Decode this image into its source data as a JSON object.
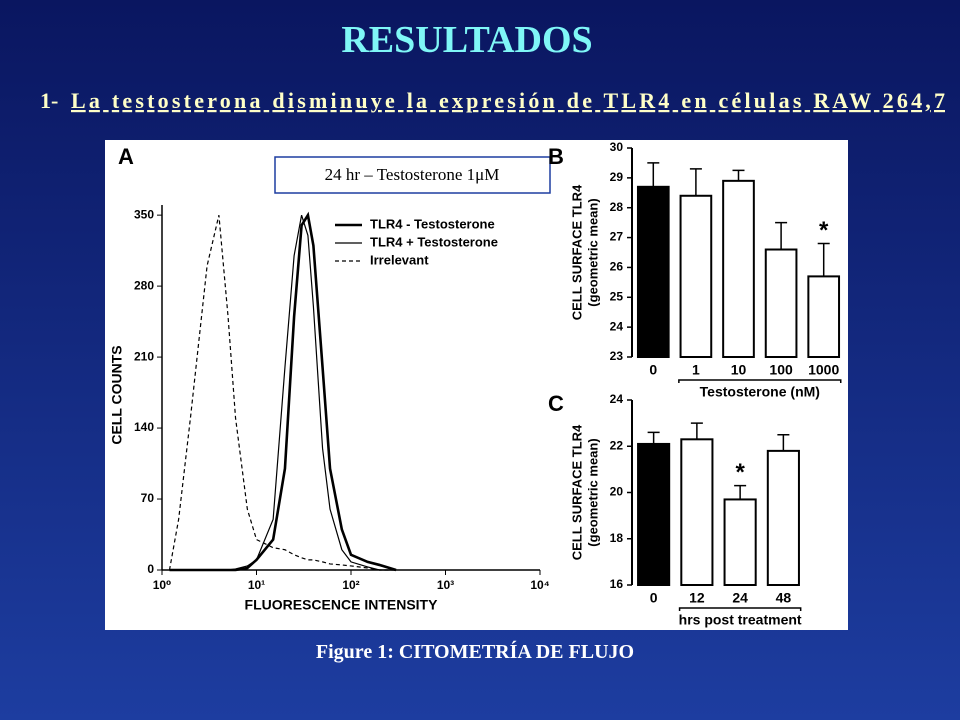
{
  "slide": {
    "title": "RESULTADOS",
    "subtitle_number": "1-",
    "subtitle": "La testosterona disminuye la expresión de TLR4 en células RAW 264,7",
    "inset_label": "24 hr – Testosterone 1μM",
    "caption": "Figure 1: CITOMETRÍA DE FLUJO"
  },
  "chart_data": [
    {
      "type": "line",
      "panel": "A",
      "ylabel": "CELL COUNTS",
      "xlabel": "FLUORESCENCE INTENSITY",
      "xscale": "log",
      "x": [
        1.2,
        1.5,
        2,
        3,
        4,
        5,
        6,
        8,
        10,
        15,
        20,
        25,
        30,
        35,
        40,
        50,
        60,
        80,
        100,
        150,
        200,
        300
      ],
      "series": [
        {
          "name": "TLR4 - Testosterone",
          "color": "#000000",
          "style": "solid",
          "line_width": 2.6,
          "values": [
            0,
            0,
            0,
            0,
            0,
            0,
            0,
            2,
            10,
            30,
            100,
            250,
            340,
            350,
            320,
            200,
            100,
            40,
            15,
            8,
            5,
            0
          ]
        },
        {
          "name": "TLR4 + Testosterone",
          "color": "#000000",
          "style": "solid",
          "line_width": 1.2,
          "values": [
            0,
            0,
            0,
            0,
            0,
            0,
            1,
            4,
            10,
            50,
            200,
            310,
            350,
            330,
            260,
            120,
            60,
            20,
            8,
            3,
            0,
            0
          ]
        },
        {
          "name": "Irrelevant",
          "color": "#000000",
          "style": "dashed",
          "line_width": 1.2,
          "values": [
            0,
            50,
            150,
            300,
            350,
            250,
            150,
            60,
            30,
            22,
            20,
            15,
            12,
            10,
            10,
            8,
            6,
            5,
            4,
            2,
            0,
            0
          ]
        }
      ],
      "xlim": [
        1,
        10000
      ],
      "xticks": [
        {
          "value": 1,
          "label": "10⁰"
        },
        {
          "value": 10,
          "label": "10¹"
        },
        {
          "value": 100,
          "label": "10²"
        },
        {
          "value": 1000,
          "label": "10³"
        },
        {
          "value": 10000,
          "label": "10⁴"
        }
      ],
      "ylim": [
        0,
        360
      ],
      "yticks": [
        0,
        70,
        140,
        210,
        280,
        350
      ]
    },
    {
      "type": "bar",
      "panel": "B",
      "ylabel": [
        "CELL SURFACE TLR4",
        "(geometric mean)"
      ],
      "xlabel": "Testosterone (nM)",
      "categories": [
        "0",
        "1",
        "10",
        "100",
        "1000"
      ],
      "values": [
        28.7,
        28.4,
        28.9,
        26.6,
        25.7
      ],
      "errors": [
        0.8,
        0.9,
        0.35,
        0.9,
        1.1
      ],
      "colors": [
        "#000000",
        "#ffffff",
        "#ffffff",
        "#ffffff",
        "#ffffff"
      ],
      "annotations": [
        null,
        null,
        null,
        null,
        "*"
      ],
      "ylim": [
        23,
        30
      ],
      "yticks": [
        23,
        24,
        25,
        26,
        27,
        28,
        29,
        30
      ]
    },
    {
      "type": "bar",
      "panel": "C",
      "ylabel": [
        "CELL SURFACE TLR4",
        "(geometric mean)"
      ],
      "xlabel": "hrs post treatment",
      "categories": [
        "0",
        "12",
        "24",
        "48"
      ],
      "values": [
        22.1,
        22.3,
        19.7,
        21.8
      ],
      "errors": [
        0.5,
        0.7,
        0.6,
        0.7
      ],
      "colors": [
        "#000000",
        "#ffffff",
        "#ffffff",
        "#ffffff"
      ],
      "annotations": [
        null,
        null,
        "*",
        null
      ],
      "ylim": [
        16,
        24
      ],
      "yticks": [
        16,
        18,
        20,
        22,
        24
      ]
    }
  ]
}
